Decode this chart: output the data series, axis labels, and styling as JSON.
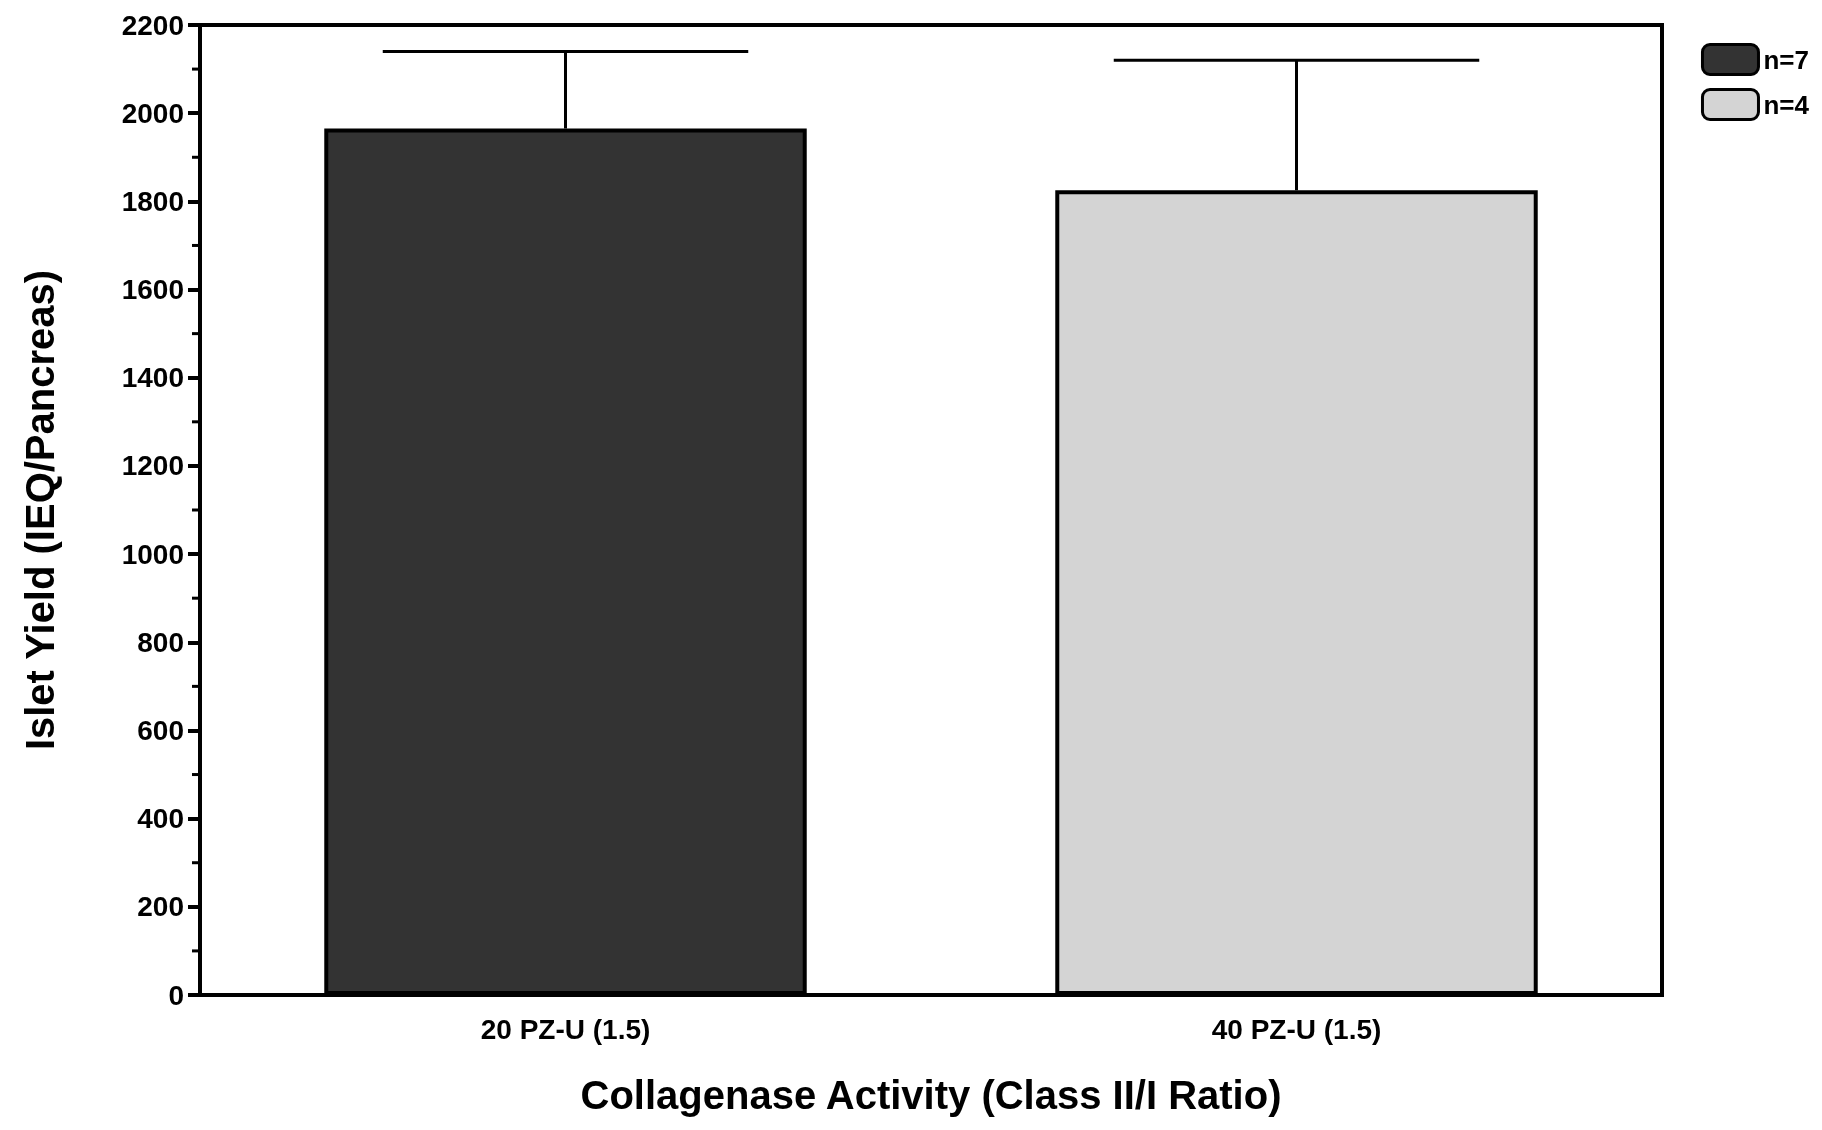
{
  "chart_data": {
    "type": "bar",
    "xlabel": "Collagenase Activity (Class II/I Ratio)",
    "ylabel": "Islet Yield (IEQ/Pancreas)",
    "categories": [
      "20 PZ-U (1.5)",
      "40 PZ-U (1.5)"
    ],
    "series": [
      {
        "name": "n=7",
        "color": "#333333",
        "values": [
          1965,
          null
        ],
        "errors": [
          [
            1965,
            2140
          ],
          null
        ]
      },
      {
        "name": "n=4",
        "color": "#d4d4d4",
        "values": [
          null,
          1825
        ],
        "errors": [
          null,
          [
            1825,
            2120
          ]
        ]
      }
    ],
    "ylim": [
      0,
      2200
    ],
    "yticks": [
      0,
      200,
      400,
      600,
      800,
      1000,
      1200,
      1400,
      1600,
      1800,
      2000,
      2200
    ],
    "grid": false,
    "legend": "top right"
  }
}
